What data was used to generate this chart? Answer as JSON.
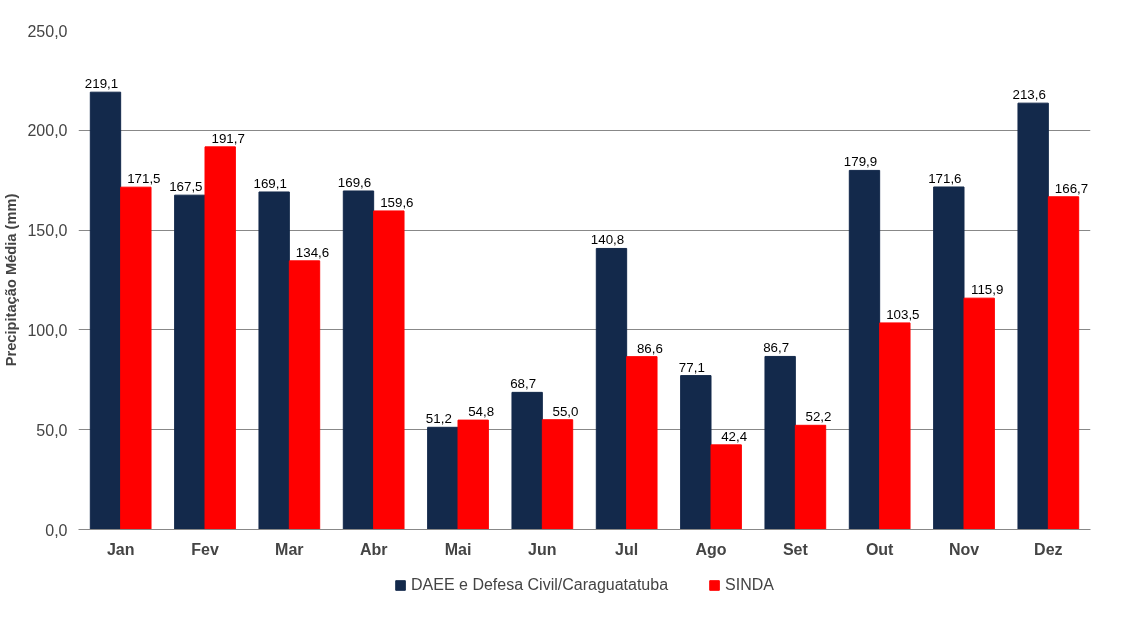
{
  "chart_data": {
    "type": "bar",
    "ylabel": "Precipitação Média (mm)",
    "categories": [
      "Jan",
      "Fev",
      "Mar",
      "Abr",
      "Mai",
      "Jun",
      "Jul",
      "Ago",
      "Set",
      "Out",
      "Nov",
      "Dez"
    ],
    "series": [
      {
        "name": "DAEE e Defesa Civil/Caraguatatuba",
        "color": "#13294b",
        "values": [
          219.1,
          167.5,
          169.1,
          169.6,
          51.2,
          68.7,
          140.8,
          77.1,
          86.7,
          179.9,
          171.6,
          213.6
        ],
        "value_labels": [
          "219,1",
          "167,5",
          "169,1",
          "169,6",
          "51,2",
          "68,7",
          "140,8",
          "77,1",
          "86,7",
          "179,9",
          "171,6",
          "213,6"
        ]
      },
      {
        "name": "SINDA",
        "color": "#ff0000",
        "values": [
          171.5,
          191.7,
          134.6,
          159.6,
          54.8,
          55.0,
          86.6,
          42.4,
          52.2,
          103.5,
          115.9,
          166.7
        ],
        "value_labels": [
          "171,5",
          "191,7",
          "134,6",
          "159,6",
          "54,8",
          "55,0",
          "86,6",
          "42,4",
          "52,2",
          "103,5",
          "115,9",
          "166,7"
        ]
      }
    ],
    "ylim": [
      0,
      250
    ],
    "yticks": [
      {
        "value": 0,
        "label": "0,0"
      },
      {
        "value": 50,
        "label": "50,0"
      },
      {
        "value": 100,
        "label": "100,0"
      },
      {
        "value": 150,
        "label": "150,0"
      },
      {
        "value": 200,
        "label": "200,0"
      },
      {
        "value": 250,
        "label": "250,0"
      }
    ],
    "grid": "y",
    "legend": "bottom"
  }
}
